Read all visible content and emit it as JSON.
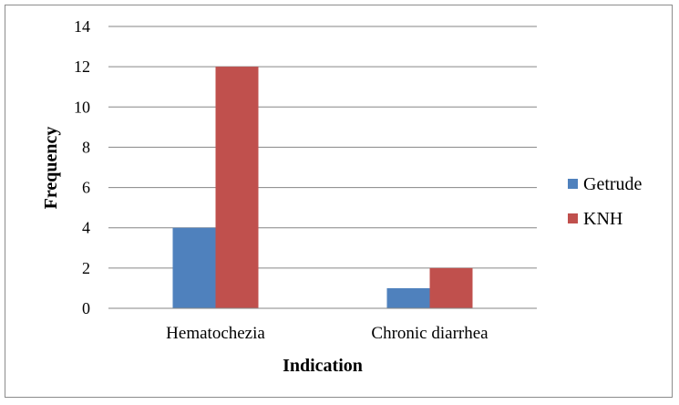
{
  "chart_data": {
    "type": "bar",
    "categories": [
      "Hematochezia",
      "Chronic diarrhea"
    ],
    "series": [
      {
        "name": "Getrude",
        "values": [
          4,
          1
        ],
        "color": "#4f81bd"
      },
      {
        "name": "KNH",
        "values": [
          12,
          2
        ],
        "color": "#c0504d"
      }
    ],
    "xlabel": "Indication",
    "ylabel": "Frequency",
    "ylim": [
      0,
      14
    ],
    "yticks": [
      "0",
      "2",
      "4",
      "6",
      "8",
      "10",
      "12",
      "14"
    ],
    "grid": true,
    "legend_position": "right"
  }
}
